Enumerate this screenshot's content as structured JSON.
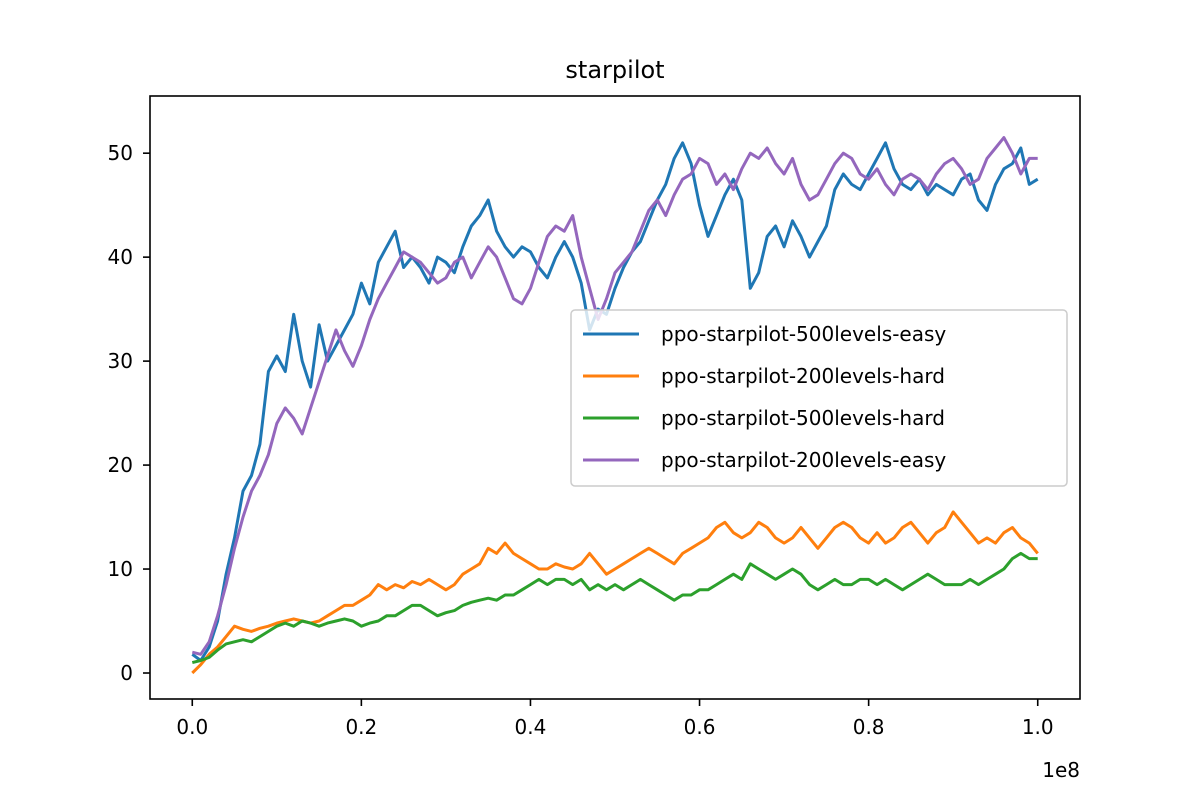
{
  "chart_data": {
    "type": "line",
    "title": "starpilot",
    "xlabel": "",
    "ylabel": "",
    "x_offset_label": "1e8",
    "xlim": [
      -0.05,
      1.05
    ],
    "ylim": [
      -2.5,
      55.5
    ],
    "xticks": [
      0.0,
      0.2,
      0.4,
      0.6,
      0.8,
      1.0
    ],
    "xtick_labels": [
      "0.0",
      "0.2",
      "0.4",
      "0.6",
      "0.8",
      "1.0"
    ],
    "yticks": [
      0,
      10,
      20,
      30,
      40,
      50
    ],
    "ytick_labels": [
      "0",
      "10",
      "20",
      "30",
      "40",
      "50"
    ],
    "legend_position": "center-right",
    "grid": false,
    "series": [
      {
        "name": "ppo-starpilot-500levels-easy",
        "color": "#1f77b4",
        "x": [
          0.0,
          0.01,
          0.02,
          0.03,
          0.04,
          0.05,
          0.06,
          0.07,
          0.08,
          0.09,
          0.1,
          0.11,
          0.12,
          0.13,
          0.14,
          0.15,
          0.16,
          0.17,
          0.18,
          0.19,
          0.2,
          0.21,
          0.22,
          0.23,
          0.24,
          0.25,
          0.26,
          0.27,
          0.28,
          0.29,
          0.3,
          0.31,
          0.32,
          0.33,
          0.34,
          0.35,
          0.36,
          0.37,
          0.38,
          0.39,
          0.4,
          0.41,
          0.42,
          0.43,
          0.44,
          0.45,
          0.46,
          0.47,
          0.48,
          0.49,
          0.5,
          0.51,
          0.52,
          0.53,
          0.54,
          0.55,
          0.56,
          0.57,
          0.58,
          0.59,
          0.6,
          0.61,
          0.62,
          0.63,
          0.64,
          0.65,
          0.66,
          0.67,
          0.68,
          0.69,
          0.7,
          0.71,
          0.72,
          0.73,
          0.74,
          0.75,
          0.76,
          0.77,
          0.78,
          0.79,
          0.8,
          0.81,
          0.82,
          0.83,
          0.84,
          0.85,
          0.86,
          0.87,
          0.88,
          0.89,
          0.9,
          0.91,
          0.92,
          0.93,
          0.94,
          0.95,
          0.96,
          0.97,
          0.98,
          0.99,
          1.0
        ],
        "y": [
          1.8,
          1.2,
          2.5,
          5.0,
          9.5,
          13.0,
          17.5,
          19.0,
          22.0,
          29.0,
          30.5,
          29.0,
          34.5,
          30.0,
          27.5,
          33.5,
          30.0,
          31.5,
          33.0,
          34.5,
          37.5,
          35.5,
          39.5,
          41.0,
          42.5,
          39.0,
          40.0,
          39.0,
          37.5,
          40.0,
          39.5,
          38.5,
          41.0,
          43.0,
          44.0,
          45.5,
          42.5,
          41.0,
          40.0,
          41.0,
          40.5,
          39.0,
          38.0,
          40.0,
          41.5,
          40.0,
          37.5,
          33.0,
          35.0,
          34.5,
          37.0,
          39.0,
          40.5,
          41.5,
          43.5,
          45.5,
          47.0,
          49.5,
          51.0,
          49.0,
          45.0,
          42.0,
          44.0,
          46.0,
          47.5,
          45.5,
          37.0,
          38.5,
          42.0,
          43.0,
          41.0,
          43.5,
          42.0,
          40.0,
          41.5,
          43.0,
          46.5,
          48.0,
          47.0,
          46.5,
          48.0,
          49.5,
          51.0,
          48.5,
          47.0,
          46.5,
          47.5,
          46.0,
          47.0,
          46.5,
          46.0,
          47.5,
          48.0,
          45.5,
          44.5,
          47.0,
          48.5,
          49.0,
          50.5,
          47.0,
          47.5
        ]
      },
      {
        "name": "ppo-starpilot-200levels-hard",
        "color": "#ff7f0e",
        "x": [
          0.0,
          0.01,
          0.02,
          0.03,
          0.04,
          0.05,
          0.06,
          0.07,
          0.08,
          0.09,
          0.1,
          0.11,
          0.12,
          0.13,
          0.14,
          0.15,
          0.16,
          0.17,
          0.18,
          0.19,
          0.2,
          0.21,
          0.22,
          0.23,
          0.24,
          0.25,
          0.26,
          0.27,
          0.28,
          0.29,
          0.3,
          0.31,
          0.32,
          0.33,
          0.34,
          0.35,
          0.36,
          0.37,
          0.38,
          0.39,
          0.4,
          0.41,
          0.42,
          0.43,
          0.44,
          0.45,
          0.46,
          0.47,
          0.48,
          0.49,
          0.5,
          0.51,
          0.52,
          0.53,
          0.54,
          0.55,
          0.56,
          0.57,
          0.58,
          0.59,
          0.6,
          0.61,
          0.62,
          0.63,
          0.64,
          0.65,
          0.66,
          0.67,
          0.68,
          0.69,
          0.7,
          0.71,
          0.72,
          0.73,
          0.74,
          0.75,
          0.76,
          0.77,
          0.78,
          0.79,
          0.8,
          0.81,
          0.82,
          0.83,
          0.84,
          0.85,
          0.86,
          0.87,
          0.88,
          0.89,
          0.9,
          0.91,
          0.92,
          0.93,
          0.94,
          0.95,
          0.96,
          0.97,
          0.98,
          0.99,
          1.0
        ],
        "y": [
          0.0,
          0.8,
          1.8,
          2.5,
          3.5,
          4.5,
          4.2,
          4.0,
          4.3,
          4.5,
          4.8,
          5.0,
          5.2,
          5.0,
          4.8,
          5.0,
          5.5,
          6.0,
          6.5,
          6.5,
          7.0,
          7.5,
          8.5,
          8.0,
          8.5,
          8.2,
          8.8,
          8.5,
          9.0,
          8.5,
          8.0,
          8.5,
          9.5,
          10.0,
          10.5,
          12.0,
          11.5,
          12.5,
          11.5,
          11.0,
          10.5,
          10.0,
          10.0,
          10.5,
          10.2,
          10.0,
          10.5,
          11.5,
          10.5,
          9.5,
          10.0,
          10.5,
          11.0,
          11.5,
          12.0,
          11.5,
          11.0,
          10.5,
          11.5,
          12.0,
          12.5,
          13.0,
          14.0,
          14.5,
          13.5,
          13.0,
          13.5,
          14.5,
          14.0,
          13.0,
          12.5,
          13.0,
          14.0,
          13.0,
          12.0,
          13.0,
          14.0,
          14.5,
          14.0,
          13.0,
          12.5,
          13.5,
          12.5,
          13.0,
          14.0,
          14.5,
          13.5,
          12.5,
          13.5,
          14.0,
          15.5,
          14.5,
          13.5,
          12.5,
          13.0,
          12.5,
          13.5,
          14.0,
          13.0,
          12.5,
          11.5
        ]
      },
      {
        "name": "ppo-starpilot-500levels-hard",
        "color": "#2ca02c",
        "x": [
          0.0,
          0.01,
          0.02,
          0.03,
          0.04,
          0.05,
          0.06,
          0.07,
          0.08,
          0.09,
          0.1,
          0.11,
          0.12,
          0.13,
          0.14,
          0.15,
          0.16,
          0.17,
          0.18,
          0.19,
          0.2,
          0.21,
          0.22,
          0.23,
          0.24,
          0.25,
          0.26,
          0.27,
          0.28,
          0.29,
          0.3,
          0.31,
          0.32,
          0.33,
          0.34,
          0.35,
          0.36,
          0.37,
          0.38,
          0.39,
          0.4,
          0.41,
          0.42,
          0.43,
          0.44,
          0.45,
          0.46,
          0.47,
          0.48,
          0.49,
          0.5,
          0.51,
          0.52,
          0.53,
          0.54,
          0.55,
          0.56,
          0.57,
          0.58,
          0.59,
          0.6,
          0.61,
          0.62,
          0.63,
          0.64,
          0.65,
          0.66,
          0.67,
          0.68,
          0.69,
          0.7,
          0.71,
          0.72,
          0.73,
          0.74,
          0.75,
          0.76,
          0.77,
          0.78,
          0.79,
          0.8,
          0.81,
          0.82,
          0.83,
          0.84,
          0.85,
          0.86,
          0.87,
          0.88,
          0.89,
          0.9,
          0.91,
          0.92,
          0.93,
          0.94,
          0.95,
          0.96,
          0.97,
          0.98,
          0.99,
          1.0
        ],
        "y": [
          1.0,
          1.2,
          1.5,
          2.2,
          2.8,
          3.0,
          3.2,
          3.0,
          3.5,
          4.0,
          4.5,
          4.8,
          4.5,
          5.0,
          4.8,
          4.5,
          4.8,
          5.0,
          5.2,
          5.0,
          4.5,
          4.8,
          5.0,
          5.5,
          5.5,
          6.0,
          6.5,
          6.5,
          6.0,
          5.5,
          5.8,
          6.0,
          6.5,
          6.8,
          7.0,
          7.2,
          7.0,
          7.5,
          7.5,
          8.0,
          8.5,
          9.0,
          8.5,
          9.0,
          9.0,
          8.5,
          9.0,
          8.0,
          8.5,
          8.0,
          8.5,
          8.0,
          8.5,
          9.0,
          8.5,
          8.0,
          7.5,
          7.0,
          7.5,
          7.5,
          8.0,
          8.0,
          8.5,
          9.0,
          9.5,
          9.0,
          10.5,
          10.0,
          9.5,
          9.0,
          9.5,
          10.0,
          9.5,
          8.5,
          8.0,
          8.5,
          9.0,
          8.5,
          8.5,
          9.0,
          9.0,
          8.5,
          9.0,
          8.5,
          8.0,
          8.5,
          9.0,
          9.5,
          9.0,
          8.5,
          8.5,
          8.5,
          9.0,
          8.5,
          9.0,
          9.5,
          10.0,
          11.0,
          11.5,
          11.0,
          11.0
        ]
      },
      {
        "name": "ppo-starpilot-200levels-easy",
        "color": "#9467bd",
        "x": [
          0.0,
          0.01,
          0.02,
          0.03,
          0.04,
          0.05,
          0.06,
          0.07,
          0.08,
          0.09,
          0.1,
          0.11,
          0.12,
          0.13,
          0.14,
          0.15,
          0.16,
          0.17,
          0.18,
          0.19,
          0.2,
          0.21,
          0.22,
          0.23,
          0.24,
          0.25,
          0.26,
          0.27,
          0.28,
          0.29,
          0.3,
          0.31,
          0.32,
          0.33,
          0.34,
          0.35,
          0.36,
          0.37,
          0.38,
          0.39,
          0.4,
          0.41,
          0.42,
          0.43,
          0.44,
          0.45,
          0.46,
          0.47,
          0.48,
          0.49,
          0.5,
          0.51,
          0.52,
          0.53,
          0.54,
          0.55,
          0.56,
          0.57,
          0.58,
          0.59,
          0.6,
          0.61,
          0.62,
          0.63,
          0.64,
          0.65,
          0.66,
          0.67,
          0.68,
          0.69,
          0.7,
          0.71,
          0.72,
          0.73,
          0.74,
          0.75,
          0.76,
          0.77,
          0.78,
          0.79,
          0.8,
          0.81,
          0.82,
          0.83,
          0.84,
          0.85,
          0.86,
          0.87,
          0.88,
          0.89,
          0.9,
          0.91,
          0.92,
          0.93,
          0.94,
          0.95,
          0.96,
          0.97,
          0.98,
          0.99,
          1.0
        ],
        "y": [
          2.0,
          1.8,
          3.0,
          5.5,
          8.5,
          12.0,
          15.0,
          17.5,
          19.0,
          21.0,
          24.0,
          25.5,
          24.5,
          23.0,
          25.5,
          28.0,
          30.5,
          33.0,
          31.0,
          29.5,
          31.5,
          34.0,
          36.0,
          37.5,
          39.0,
          40.5,
          40.0,
          39.5,
          38.5,
          37.5,
          38.0,
          39.5,
          40.0,
          38.0,
          39.5,
          41.0,
          40.0,
          38.0,
          36.0,
          35.5,
          37.0,
          39.5,
          42.0,
          43.0,
          42.5,
          44.0,
          40.0,
          37.0,
          34.0,
          36.0,
          38.5,
          39.5,
          40.5,
          42.5,
          44.5,
          45.5,
          44.0,
          46.0,
          47.5,
          48.0,
          49.5,
          49.0,
          47.0,
          48.0,
          46.5,
          48.5,
          50.0,
          49.5,
          50.5,
          49.0,
          48.0,
          49.5,
          47.0,
          45.5,
          46.0,
          47.5,
          49.0,
          50.0,
          49.5,
          48.0,
          47.5,
          48.5,
          47.0,
          46.0,
          47.5,
          48.0,
          47.5,
          46.5,
          48.0,
          49.0,
          49.5,
          48.5,
          47.0,
          47.5,
          49.5,
          50.5,
          51.5,
          50.0,
          48.0,
          49.5,
          49.5
        ]
      }
    ]
  }
}
